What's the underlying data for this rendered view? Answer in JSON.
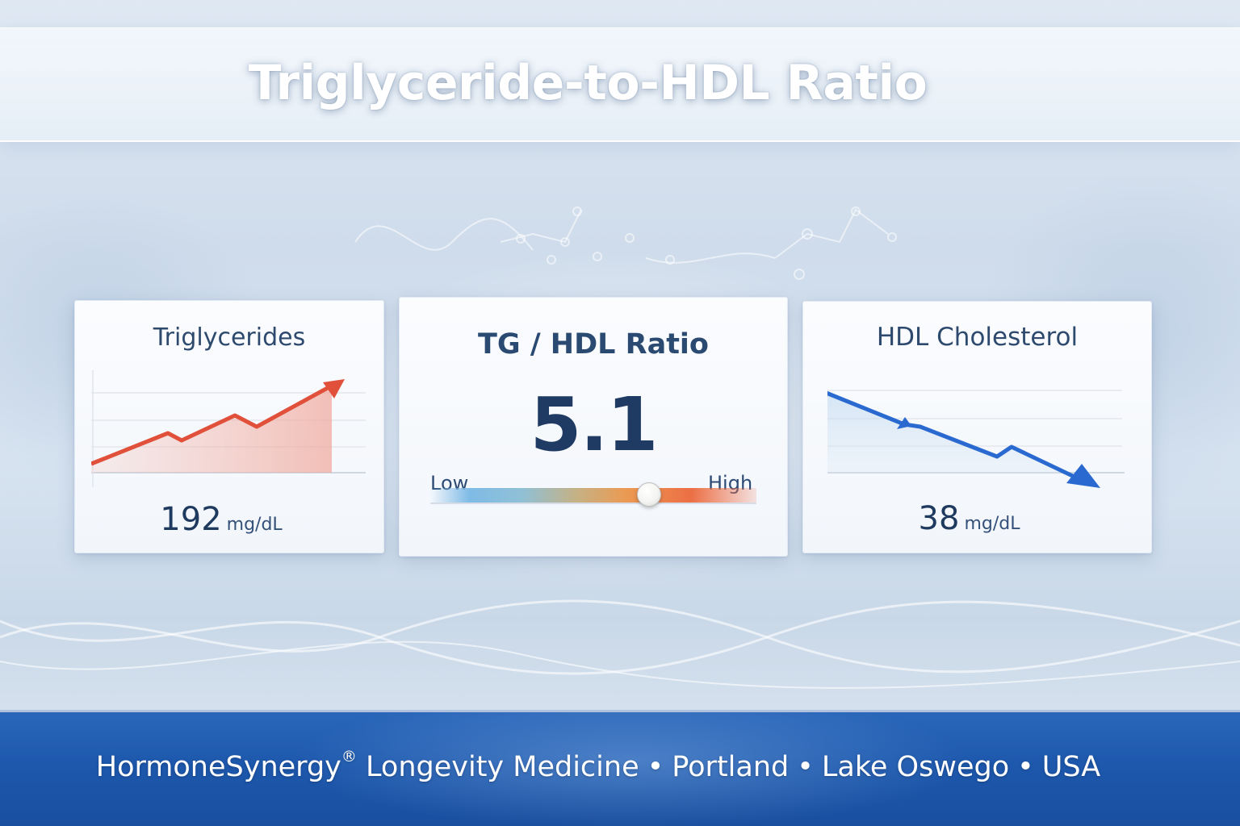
{
  "header": {
    "title": "Triglyceride-to-HDL Ratio"
  },
  "cards": {
    "triglycerides": {
      "title": "Triglycerides",
      "value": "192",
      "unit": "mg/dL",
      "trend": "up",
      "color": "#e0503a"
    },
    "ratio": {
      "title": "TG / HDL Ratio",
      "value": "5.1",
      "gauge": {
        "low_label": "Low",
        "high_label": "High",
        "level_fraction": 0.67
      }
    },
    "hdl": {
      "title": "HDL Cholesterol",
      "value": "38",
      "unit": "mg/dL",
      "trend": "down",
      "color": "#2a6ad0"
    }
  },
  "footer": {
    "brand": "HormoneSynergy",
    "brand_mark": "®",
    "practice": "Longevity Medicine",
    "loc1": "Portland",
    "loc2": "Lake Oswego",
    "loc3": "USA",
    "separator": "•",
    "color": "#1d58ad"
  }
}
